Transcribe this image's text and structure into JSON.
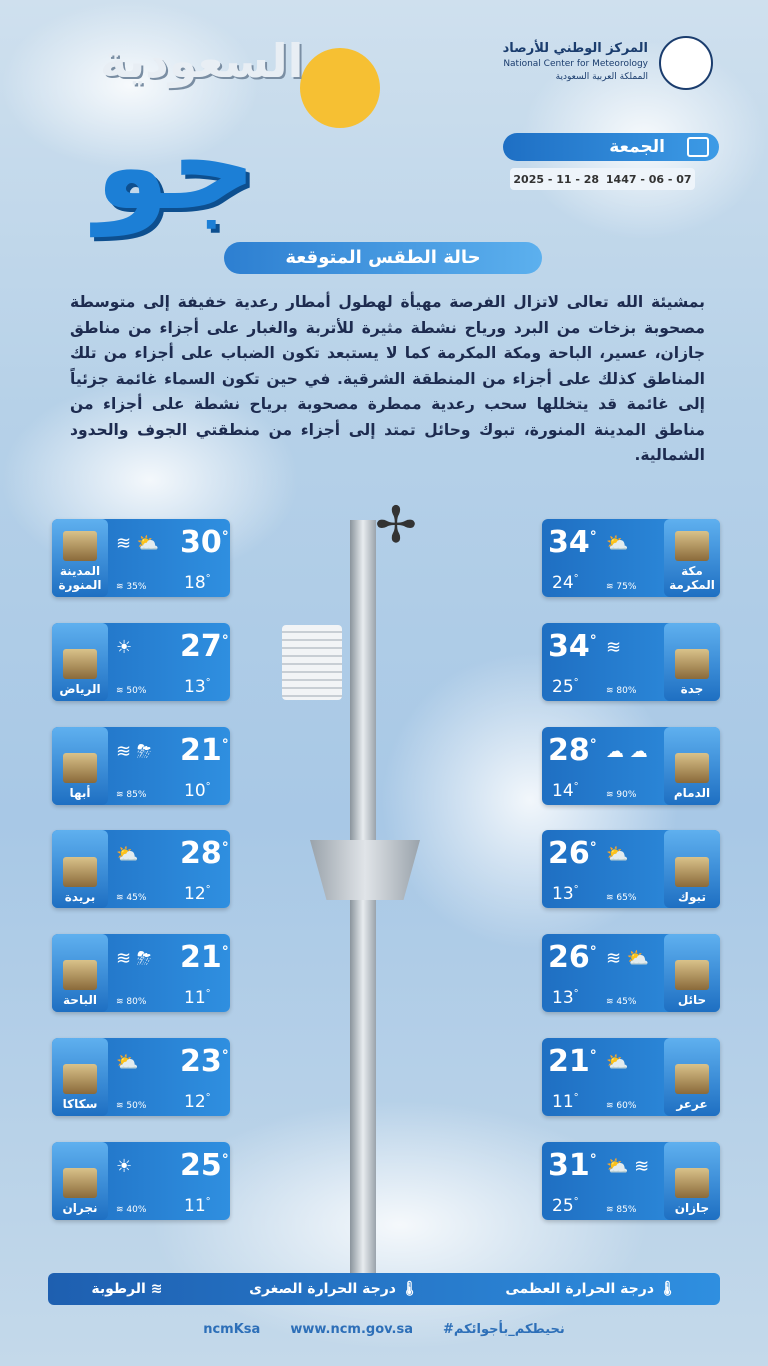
{
  "header": {
    "logo_main": "جو",
    "logo_sub": "السعودية",
    "org_ar": "المركز الوطني للأرصاد",
    "org_en": "National Center for Meteorology",
    "org_country": "المملكة العربية السعودية",
    "day": "الجمعة",
    "date_gregorian": "2025 - 11 - 28",
    "date_hijri": "1447 - 06 - 07",
    "subtitle": "حالة الطقس المتوقعة"
  },
  "forecast_text": "بمشيئة الله تعالى لاتزال الفرصة مهيأة لهطول أمطار رعدية خفيفة إلى متوسطة مصحوبة بزخات من البرد ورياح نشطة مثيرة للأتربة والغبار على أجزاء من مناطق جازان، عسير، الباحة ومكة المكرمة كما لا يستبعد تكون الضباب على أجزاء من تلك المناطق كذلك على أجزاء من المنطقة الشرقية. في حين تكون السماء غائمة جزئياً إلى غائمة قد يتخللها سحب رعدية ممطرة مصحوبة برياح نشطة على أجزاء من مناطق المدينة المنورة، تبوك وحائل تمتد إلى أجزاء من منطقتي الجوف والحدود الشمالية.",
  "cities_left": [
    {
      "name": "المدينة المنورة",
      "max": "30",
      "min": "18",
      "humidity": "35%",
      "icons": "cloud-wind-dust"
    },
    {
      "name": "الرياض",
      "max": "27",
      "min": "13",
      "humidity": "50%",
      "icons": "sun"
    },
    {
      "name": "أبها",
      "max": "21",
      "min": "10",
      "humidity": "85%",
      "icons": "wind-thunderstorm"
    },
    {
      "name": "بريدة",
      "max": "28",
      "min": "12",
      "humidity": "45%",
      "icons": "partly-cloudy"
    },
    {
      "name": "الباحة",
      "max": "21",
      "min": "11",
      "humidity": "80%",
      "icons": "wind-thunderstorm"
    },
    {
      "name": "سكاكا",
      "max": "23",
      "min": "12",
      "humidity": "50%",
      "icons": "partly-cloudy"
    },
    {
      "name": "نجران",
      "max": "25",
      "min": "11",
      "humidity": "40%",
      "icons": "sun"
    }
  ],
  "cities_right": [
    {
      "name": "مكة المكرمة",
      "max": "34",
      "min": "24",
      "humidity": "75%",
      "icons": "partly-cloudy"
    },
    {
      "name": "جدة",
      "max": "34",
      "min": "25",
      "humidity": "80%",
      "icons": "haze"
    },
    {
      "name": "الدمام",
      "max": "28",
      "min": "14",
      "humidity": "90%",
      "icons": "fog-cloud"
    },
    {
      "name": "تبوك",
      "max": "26",
      "min": "13",
      "humidity": "65%",
      "icons": "partly-cloudy"
    },
    {
      "name": "حائل",
      "max": "26",
      "min": "13",
      "humidity": "45%",
      "icons": "wind-cloud"
    },
    {
      "name": "عرعر",
      "max": "21",
      "min": "11",
      "humidity": "60%",
      "icons": "partly-cloudy"
    },
    {
      "name": "جازان",
      "max": "31",
      "min": "25",
      "humidity": "85%",
      "icons": "cloud-haze"
    }
  ],
  "legend": {
    "max": "درجة الحرارة العظمى",
    "min": "درجة الحرارة الصغرى",
    "humidity": "الرطوبة"
  },
  "footer": {
    "hashtag": "#نحيطكم_بأجوائكم",
    "website": "www.ncm.gov.sa",
    "handle": "ncmKsa"
  },
  "colors": {
    "accent": "#1f6fc2",
    "text": "#1d2b4f",
    "sun": "#f6c033"
  }
}
